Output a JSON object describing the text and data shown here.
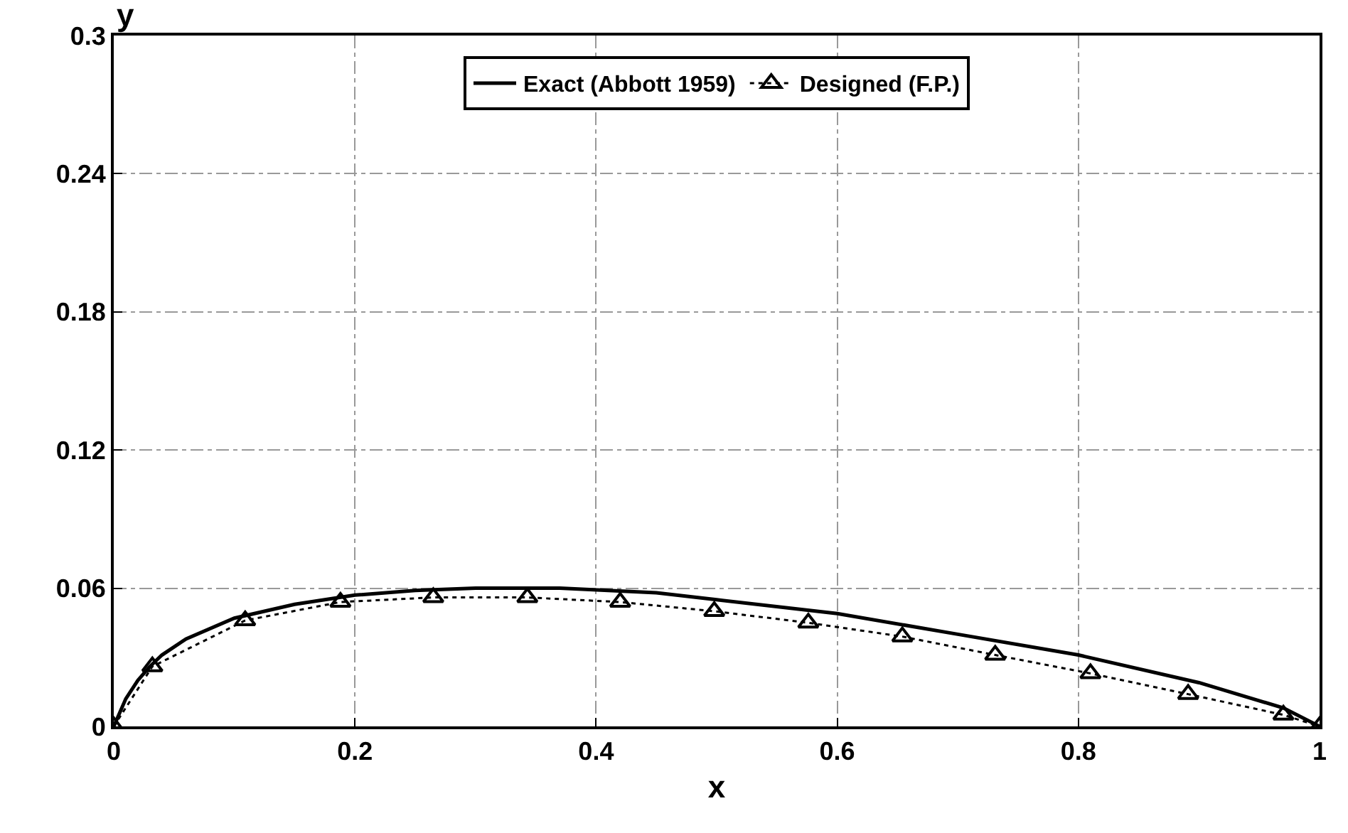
{
  "chart_data": {
    "type": "line",
    "xlabel": "x",
    "ylabel": "y",
    "xlim": [
      0,
      1
    ],
    "ylim": [
      0,
      0.3
    ],
    "xticks": [
      0,
      0.2,
      0.4,
      0.6,
      0.8,
      1
    ],
    "yticks": [
      0,
      0.06,
      0.12,
      0.18,
      0.24,
      0.3
    ],
    "grid": true,
    "legend": "top",
    "series": [
      {
        "name": "Exact (Abbott 1959)",
        "color": "#000000",
        "marker": "none",
        "line_style": "solid",
        "x": [
          0,
          0.01,
          0.02,
          0.03,
          0.04,
          0.06,
          0.1,
          0.15,
          0.2,
          0.25,
          0.3,
          0.37,
          0.45,
          0.5,
          0.6,
          0.7,
          0.8,
          0.9,
          0.97,
          1
        ],
        "values": [
          0,
          0.012,
          0.02,
          0.026,
          0.031,
          0.038,
          0.047,
          0.053,
          0.057,
          0.059,
          0.06,
          0.06,
          0.058,
          0.055,
          0.049,
          0.04,
          0.031,
          0.019,
          0.008,
          0
        ]
      },
      {
        "name": "Designed (F.P.)",
        "color": "#000000",
        "marker": "triangle",
        "line_style": "dotted",
        "x": [
          0,
          0.032,
          0.109,
          0.188,
          0.265,
          0.343,
          0.42,
          0.498,
          0.576,
          0.654,
          0.731,
          0.81,
          0.891,
          0.97,
          1
        ],
        "values": [
          0,
          0.026,
          0.046,
          0.054,
          0.056,
          0.056,
          0.054,
          0.05,
          0.045,
          0.039,
          0.031,
          0.023,
          0.014,
          0.005,
          0
        ]
      }
    ]
  }
}
